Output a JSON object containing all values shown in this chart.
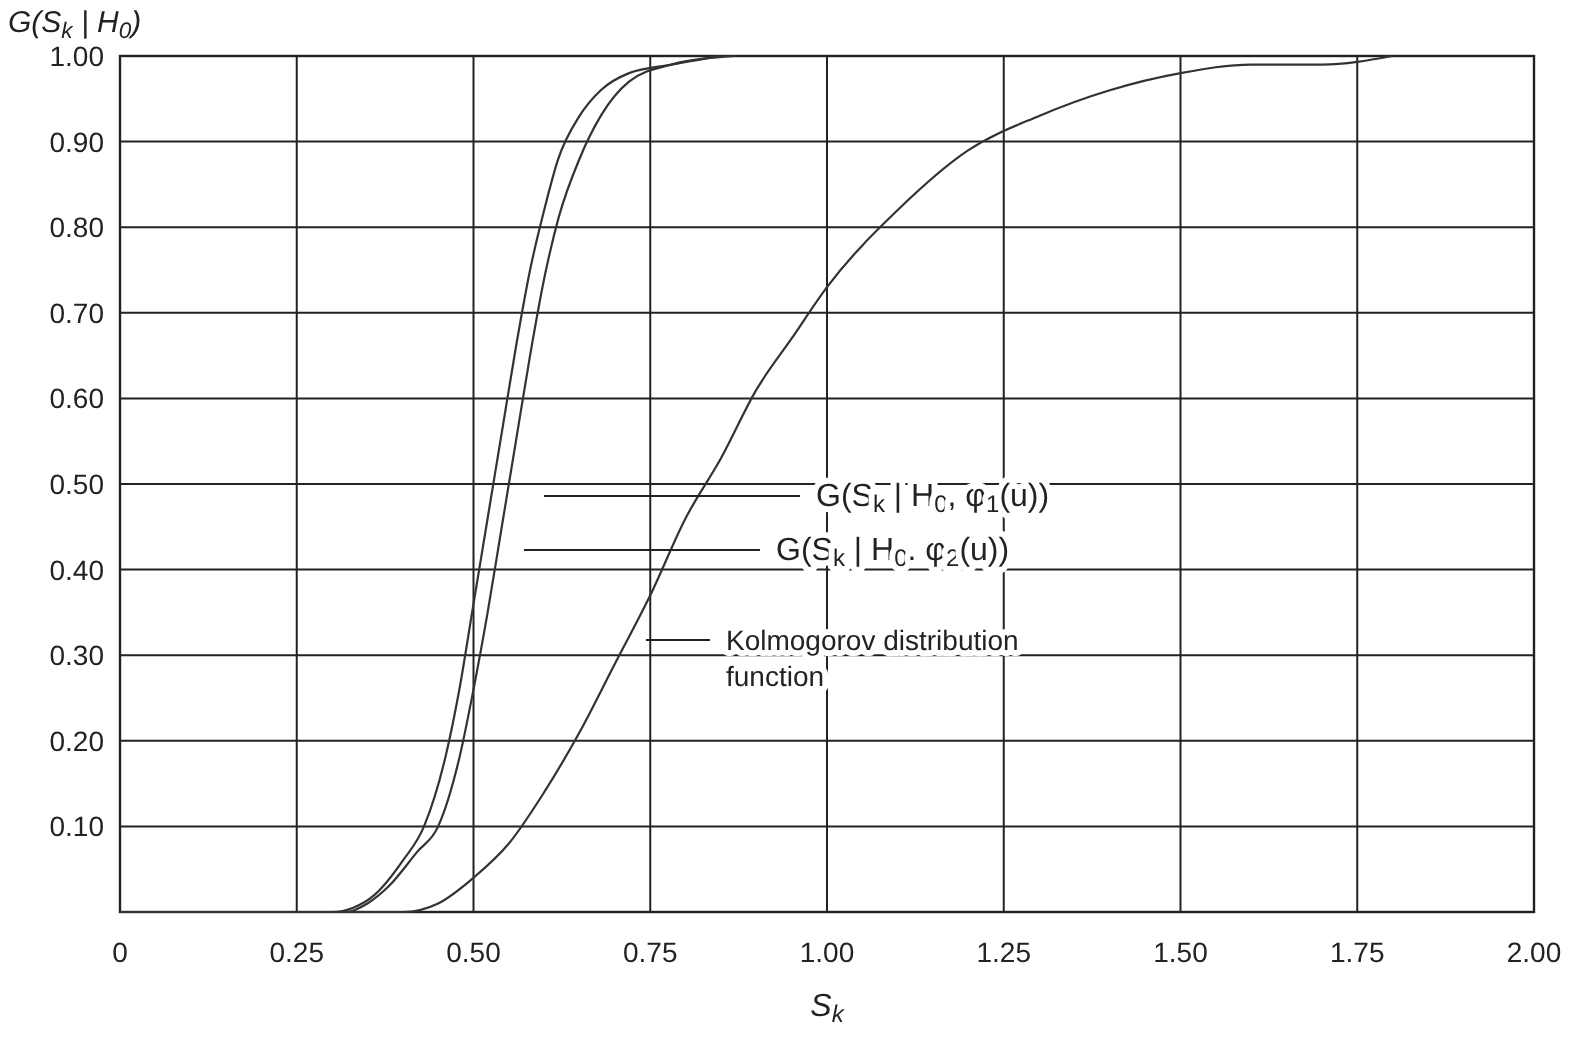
{
  "chart_data": {
    "type": "line",
    "xlabel": "S$_{k}$",
    "ylabel": "G(S$_{k}$ | H$_{0}$)",
    "xlim": [
      0,
      2
    ],
    "ylim": [
      0,
      1
    ],
    "xticks": [
      0,
      {
        "value": 0.25,
        "label": "0.25"
      },
      {
        "value": 0.5,
        "label": "0.50"
      },
      {
        "value": 0.75,
        "label": "0.75"
      },
      {
        "value": 1,
        "label": "1.00"
      },
      {
        "value": 1.25,
        "label": "1.25"
      },
      {
        "value": 1.5,
        "label": "1.50"
      },
      {
        "value": 1.75,
        "label": "1.75"
      },
      {
        "value": 2,
        "label": "2.00"
      }
    ],
    "yticks": [
      {
        "value": 0.1,
        "label": "0.10"
      },
      {
        "value": 0.2,
        "label": "0.20"
      },
      {
        "value": 0.3,
        "label": "0.30"
      },
      {
        "value": 0.4,
        "label": "0.40"
      },
      {
        "value": 0.5,
        "label": "0.50"
      },
      {
        "value": 0.6,
        "label": "0.60"
      },
      {
        "value": 0.7,
        "label": "0.70"
      },
      {
        "value": 0.8,
        "label": "0.80"
      },
      {
        "value": 0.9,
        "label": "0.90"
      },
      {
        "value": 1,
        "label": "1.00"
      }
    ],
    "grid": true,
    "marker": "none",
    "line_style": "solid",
    "series": [
      {
        "color": "#333333",
        "x": [
          0,
          0.3,
          0.33,
          0.36,
          0.4,
          0.43,
          0.46,
          0.48,
          0.5,
          0.52,
          0.54,
          0.56,
          0.58,
          0.6,
          0.62,
          0.65,
          0.68,
          0.72,
          0.78,
          0.85
        ],
        "values": [
          0,
          0,
          0.005,
          0.02,
          0.06,
          0.1,
          0.18,
          0.26,
          0.36,
          0.46,
          0.56,
          0.66,
          0.75,
          0.82,
          0.88,
          0.93,
          0.96,
          0.98,
          0.99,
          1
        ]
      },
      {
        "color": "#333333",
        "x": [
          0,
          0.32,
          0.35,
          0.38,
          0.42,
          0.45,
          0.48,
          0.5,
          0.52,
          0.54,
          0.56,
          0.58,
          0.6,
          0.62,
          0.65,
          0.68,
          0.72,
          0.78,
          0.87
        ],
        "values": [
          0,
          0,
          0.01,
          0.03,
          0.07,
          0.1,
          0.18,
          0.26,
          0.35,
          0.45,
          0.55,
          0.65,
          0.74,
          0.81,
          0.88,
          0.93,
          0.97,
          0.99,
          1
        ]
      },
      {
        "color": "#333333",
        "x": [
          0,
          0.3,
          0.35,
          0.4,
          0.45,
          0.5,
          0.55,
          0.6,
          0.65,
          0.7,
          0.75,
          0.8,
          0.85,
          0.9,
          0.95,
          1,
          1.1,
          1.2,
          1.3,
          1.4,
          1.5,
          1.6,
          1.7,
          1.8
        ],
        "values": [
          0,
          0,
          0,
          0,
          0.01,
          0.04,
          0.08,
          0.14,
          0.21,
          0.29,
          0.37,
          0.46,
          0.53,
          0.61,
          0.67,
          0.73,
          0.82,
          0.89,
          0.93,
          0.96,
          0.98,
          0.99,
          0.99,
          1
        ]
      }
    ],
    "annotations": [
      "G(S$_{k}$ | H$_{0}$, φ$_{1}$(u))",
      "G(S$_{k}$ | H$_{0}$. φ$_{2}$(u))",
      "Kolmogorov distribution\nfunction"
    ]
  }
}
